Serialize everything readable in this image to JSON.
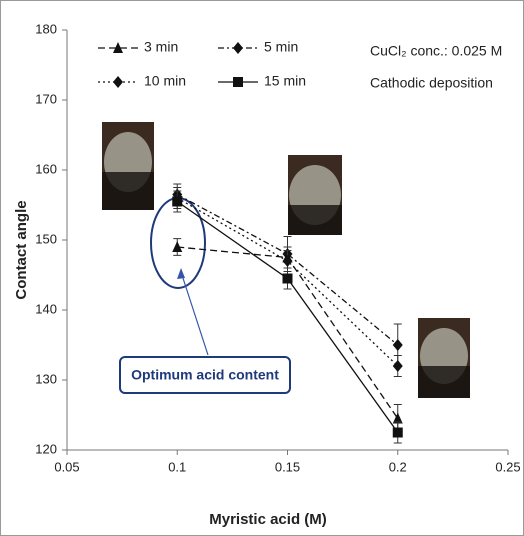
{
  "chart_data": {
    "type": "line",
    "xlabel": "Myristic acid (M)",
    "ylabel": "Contact angle",
    "annotations": [
      "CuCl₂ conc.: 0.025 M",
      "Cathodic deposition",
      "Optimum acid content"
    ],
    "x": [
      0.1,
      0.15,
      0.2
    ],
    "series": [
      {
        "name": "3 min",
        "color": "#111",
        "dash": "7,4",
        "marker": "triangle",
        "values": [
          149,
          147.5,
          124.5
        ],
        "errors": [
          1.2,
          1.5,
          2
        ]
      },
      {
        "name": "5 min",
        "color": "#111",
        "dash": "6,3,2,3",
        "marker": "diamond",
        "values": [
          156.5,
          148,
          135
        ],
        "errors": [
          1.5,
          2.5,
          3
        ]
      },
      {
        "name": "10 min",
        "color": "#111",
        "dash": "2,3",
        "marker": "diamond",
        "values": [
          156,
          147,
          132
        ],
        "errors": [
          1.5,
          1.5,
          1.5
        ]
      },
      {
        "name": "15 min",
        "color": "#111",
        "dash": "",
        "marker": "square",
        "values": [
          155.5,
          144.5,
          122.5
        ],
        "errors": [
          1.5,
          1.5,
          1.5
        ]
      }
    ],
    "xlim": [
      0.05,
      0.25
    ],
    "xticks": [
      0.05,
      0.1,
      0.15,
      0.2,
      0.25
    ],
    "ylim": [
      120,
      180
    ],
    "yticks": [
      120,
      130,
      140,
      150,
      160,
      170,
      180
    ],
    "grid": false
  }
}
